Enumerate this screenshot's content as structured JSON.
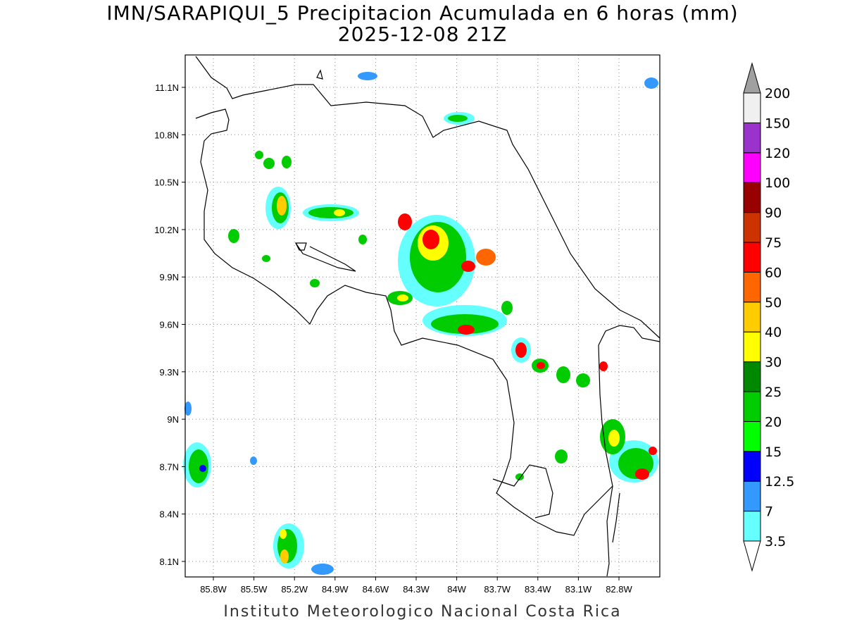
{
  "map": {
    "title_line1": "IMN/SARAPIQUI_5 Precipitacion Acumulada en 6 horas (mm)",
    "title_line2": "2025-12-08 21Z",
    "credit": "Instituto Meteorologico Nacional Costa Rica",
    "lat_labels": [
      "11.1N",
      "10.8N",
      "10.5N",
      "10.2N",
      "9.9N",
      "9.6N",
      "9.3N",
      "9N",
      "8.7N",
      "8.4N",
      "8.1N"
    ],
    "lon_labels": [
      "85.8W",
      "85.5W",
      "85.2W",
      "84.9W",
      "84.6W",
      "84.3W",
      "84W",
      "83.7W",
      "83.4W",
      "83.1W",
      "82.8W"
    ],
    "grid": true
  },
  "colorbar": {
    "levels": [
      {
        "label": "3.5",
        "color": "#ffffff"
      },
      {
        "label": "7",
        "color": "#66ffff"
      },
      {
        "label": "12.5",
        "color": "#3399ff"
      },
      {
        "label": "15",
        "color": "#0000ff"
      },
      {
        "label": "20",
        "color": "#00ff00"
      },
      {
        "label": "25",
        "color": "#00cc00"
      },
      {
        "label": "30",
        "color": "#008800"
      },
      {
        "label": "40",
        "color": "#ffff00"
      },
      {
        "label": "50",
        "color": "#ffcc00"
      },
      {
        "label": "60",
        "color": "#ff6600"
      },
      {
        "label": "75",
        "color": "#ff0000"
      },
      {
        "label": "90",
        "color": "#cc3300"
      },
      {
        "label": "100",
        "color": "#990000"
      },
      {
        "label": "120",
        "color": "#ff00ff"
      },
      {
        "label": "150",
        "color": "#9933cc"
      },
      {
        "label": "200",
        "color": "#f0f0f0"
      }
    ],
    "top_arrow_color": "#a0a0a0"
  }
}
